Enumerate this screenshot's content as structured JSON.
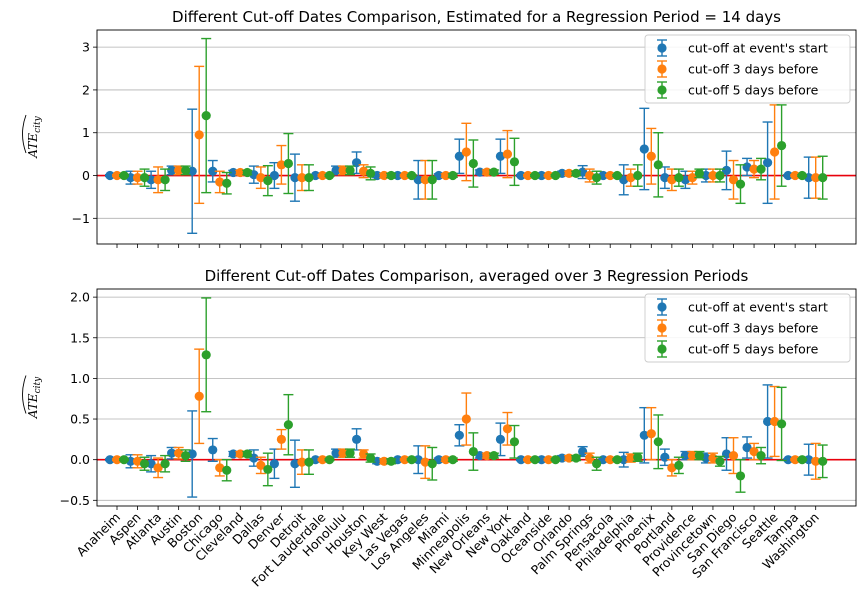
{
  "chart_data": [
    {
      "type": "errorbar",
      "title": "Different Cut-off Dates Comparison, Estimated for a Regression Period = 14 days",
      "ylabel": "ATE_city",
      "ylim": [
        -1.6,
        3.4
      ],
      "yticks": [
        -1,
        0,
        1,
        2,
        3
      ],
      "show_xticklabels": false,
      "grid": "horizontal",
      "legend_position": "top-right",
      "zero_line_color": "#e8000b",
      "categories": [
        "Anaheim",
        "Aspen",
        "Atlanta",
        "Austin",
        "Boston",
        "Chicago",
        "Cleveland",
        "Dallas",
        "Denver",
        "Detroit",
        "Fort Lauderdale",
        "Honolulu",
        "Houston",
        "Key West",
        "Las Vegas",
        "Los Angeles",
        "Miami",
        "Minneapolis",
        "New Orleans",
        "New York",
        "Oakland",
        "Oceanside",
        "Orlando",
        "Palm Springs",
        "Pensacola",
        "Philadelphia",
        "Phoenix",
        "Portland",
        "Providence",
        "Provincetown",
        "San Diego",
        "San Francisco",
        "Seattle",
        "Tampa",
        "Washington"
      ],
      "series": [
        {
          "name": "cut-off at event's start",
          "color": "#1f77b4",
          "values": [
            0.0,
            -0.05,
            -0.1,
            0.12,
            0.1,
            0.1,
            0.07,
            0.02,
            0.0,
            -0.05,
            0.0,
            0.12,
            0.3,
            0.0,
            0.0,
            -0.1,
            0.0,
            0.45,
            0.08,
            0.45,
            0.0,
            0.0,
            0.05,
            0.08,
            0.0,
            -0.1,
            0.62,
            -0.05,
            -0.1,
            0.0,
            0.12,
            0.2,
            0.3,
            0.0,
            -0.05
          ],
          "errors": [
            0.02,
            0.15,
            0.2,
            0.1,
            1.45,
            0.25,
            0.05,
            0.2,
            0.3,
            0.55,
            0.02,
            0.1,
            0.25,
            0.05,
            0.02,
            0.45,
            0.04,
            0.4,
            0.05,
            0.4,
            0.02,
            0.02,
            0.05,
            0.15,
            0.02,
            0.35,
            0.95,
            0.25,
            0.2,
            0.15,
            0.45,
            0.2,
            0.95,
            0.02,
            0.48
          ]
        },
        {
          "name": "cut-off 3 days before",
          "color": "#ff7f0e",
          "values": [
            0.0,
            -0.05,
            -0.1,
            0.12,
            0.95,
            -0.15,
            0.07,
            -0.05,
            0.25,
            -0.05,
            0.0,
            0.12,
            0.1,
            0.0,
            0.0,
            -0.1,
            0.0,
            0.55,
            0.08,
            0.5,
            0.0,
            0.0,
            0.05,
            0.0,
            0.0,
            -0.05,
            0.45,
            -0.1,
            -0.05,
            0.0,
            -0.1,
            0.15,
            0.55,
            0.0,
            -0.05
          ],
          "errors": [
            0.02,
            0.15,
            0.3,
            0.1,
            1.6,
            0.25,
            0.05,
            0.25,
            0.45,
            0.3,
            0.02,
            0.1,
            0.15,
            0.05,
            0.02,
            0.45,
            0.04,
            0.67,
            0.05,
            0.55,
            0.02,
            0.02,
            0.05,
            0.15,
            0.02,
            0.2,
            0.65,
            0.25,
            0.15,
            0.15,
            0.45,
            0.2,
            1.1,
            0.02,
            0.48
          ]
        },
        {
          "name": "cut-off 5 days before",
          "color": "#2ca02c",
          "values": [
            0.0,
            -0.05,
            -0.1,
            0.12,
            1.4,
            -0.18,
            0.07,
            -0.12,
            0.28,
            -0.05,
            0.0,
            0.12,
            0.05,
            0.0,
            0.0,
            -0.1,
            0.0,
            0.28,
            0.08,
            0.32,
            0.0,
            0.0,
            0.05,
            -0.05,
            0.0,
            0.0,
            0.25,
            -0.05,
            0.05,
            0.0,
            -0.2,
            0.15,
            0.7,
            0.0,
            -0.05
          ],
          "errors": [
            0.02,
            0.2,
            0.25,
            0.1,
            1.8,
            0.25,
            0.05,
            0.35,
            0.7,
            0.3,
            0.02,
            0.1,
            0.15,
            0.05,
            0.02,
            0.45,
            0.04,
            0.55,
            0.05,
            0.55,
            0.02,
            0.02,
            0.05,
            0.15,
            0.02,
            0.25,
            0.75,
            0.2,
            0.1,
            0.15,
            0.45,
            0.25,
            0.95,
            0.02,
            0.5
          ]
        }
      ]
    },
    {
      "type": "errorbar",
      "title": "Different Cut-off Dates Comparison, averaged over 3 Regression Periods",
      "ylabel": "ATE_city",
      "ylim": [
        -0.57,
        2.1
      ],
      "yticks": [
        -0.5,
        0.0,
        0.5,
        1.0,
        1.5,
        2.0
      ],
      "show_xticklabels": true,
      "grid": "horizontal",
      "legend_position": "top-right",
      "zero_line_color": "#e8000b",
      "categories": [
        "Anaheim",
        "Aspen",
        "Atlanta",
        "Austin",
        "Boston",
        "Chicago",
        "Cleveland",
        "Dallas",
        "Denver",
        "Detroit",
        "Fort Lauderdale",
        "Honolulu",
        "Houston",
        "Key West",
        "Las Vegas",
        "Los Angeles",
        "Miami",
        "Minneapolis",
        "New Orleans",
        "New York",
        "Oakland",
        "Oceanside",
        "Orlando",
        "Palm Springs",
        "Pensacola",
        "Philadelphia",
        "Phoenix",
        "Portland",
        "Providence",
        "Provincetown",
        "San Diego",
        "San Francisco",
        "Seattle",
        "Tampa",
        "Washington"
      ],
      "series": [
        {
          "name": "cut-off at event's start",
          "color": "#1f77b4",
          "values": [
            0.0,
            -0.02,
            -0.05,
            0.08,
            0.07,
            0.12,
            0.07,
            0.02,
            -0.05,
            -0.05,
            0.0,
            0.08,
            0.25,
            -0.02,
            0.0,
            0.0,
            0.0,
            0.3,
            0.05,
            0.25,
            0.0,
            0.0,
            0.02,
            0.1,
            0.0,
            0.0,
            0.3,
            0.03,
            0.05,
            0.02,
            0.07,
            0.15,
            0.47,
            0.0,
            0.0
          ],
          "errors": [
            0.01,
            0.08,
            0.1,
            0.07,
            0.53,
            0.14,
            0.03,
            0.1,
            0.18,
            0.29,
            0.01,
            0.05,
            0.13,
            0.03,
            0.01,
            0.17,
            0.02,
            0.13,
            0.03,
            0.2,
            0.01,
            0.01,
            0.03,
            0.06,
            0.01,
            0.09,
            0.34,
            0.1,
            0.05,
            0.06,
            0.2,
            0.13,
            0.45,
            0.01,
            0.19
          ]
        },
        {
          "name": "cut-off 3 days before",
          "color": "#ff7f0e",
          "values": [
            0.0,
            -0.02,
            -0.1,
            0.08,
            0.78,
            -0.1,
            0.07,
            -0.07,
            0.25,
            -0.03,
            0.0,
            0.08,
            0.07,
            -0.02,
            0.0,
            -0.03,
            0.0,
            0.5,
            0.05,
            0.38,
            0.0,
            0.0,
            0.02,
            0.02,
            0.0,
            0.02,
            0.32,
            -0.1,
            0.05,
            0.02,
            0.05,
            0.1,
            0.47,
            0.0,
            -0.02
          ],
          "errors": [
            0.01,
            0.08,
            0.12,
            0.07,
            0.58,
            0.1,
            0.03,
            0.1,
            0.12,
            0.15,
            0.01,
            0.05,
            0.05,
            0.03,
            0.01,
            0.2,
            0.02,
            0.32,
            0.03,
            0.2,
            0.01,
            0.01,
            0.03,
            0.06,
            0.01,
            0.05,
            0.32,
            0.1,
            0.05,
            0.06,
            0.22,
            0.1,
            0.43,
            0.01,
            0.22
          ]
        },
        {
          "name": "cut-off 5 days before",
          "color": "#2ca02c",
          "values": [
            0.0,
            -0.05,
            -0.05,
            0.05,
            1.29,
            -0.13,
            0.07,
            -0.12,
            0.43,
            -0.03,
            0.0,
            0.08,
            0.02,
            -0.02,
            0.0,
            -0.05,
            0.0,
            0.1,
            0.05,
            0.22,
            0.0,
            0.0,
            0.02,
            -0.05,
            0.0,
            0.03,
            0.22,
            -0.07,
            0.05,
            -0.02,
            -0.2,
            0.05,
            0.44,
            0.0,
            -0.02
          ],
          "errors": [
            0.01,
            0.08,
            0.1,
            0.07,
            0.7,
            0.13,
            0.03,
            0.2,
            0.37,
            0.15,
            0.01,
            0.05,
            0.05,
            0.03,
            0.01,
            0.2,
            0.02,
            0.23,
            0.03,
            0.2,
            0.01,
            0.01,
            0.03,
            0.08,
            0.01,
            0.05,
            0.33,
            0.1,
            0.05,
            0.06,
            0.2,
            0.1,
            0.45,
            0.01,
            0.2
          ]
        }
      ]
    }
  ]
}
